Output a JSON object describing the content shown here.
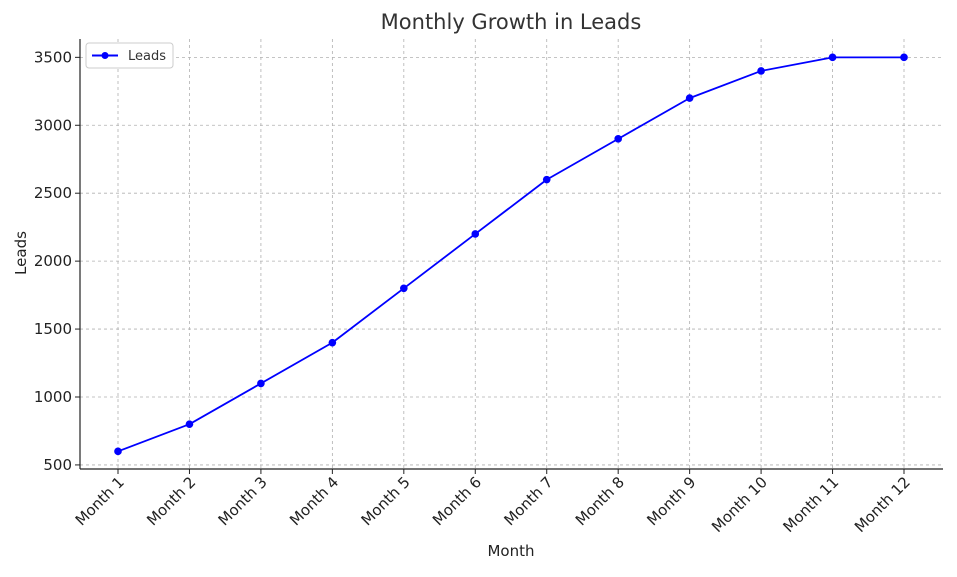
{
  "chart_data": {
    "type": "line",
    "title": "Monthly Growth in Leads",
    "xlabel": "Month",
    "ylabel": "Leads",
    "categories": [
      "Month 1",
      "Month 2",
      "Month 3",
      "Month 4",
      "Month 5",
      "Month 6",
      "Month 7",
      "Month 8",
      "Month 9",
      "Month 10",
      "Month 11",
      "Month 12"
    ],
    "series": [
      {
        "name": "Leads",
        "color": "#0000ff",
        "marker": "circle",
        "values": [
          600,
          800,
          1100,
          1400,
          1800,
          2200,
          2600,
          2900,
          3200,
          3400,
          3500,
          3500
        ]
      }
    ],
    "yticks": [
      500,
      1000,
      1500,
      2000,
      2500,
      3000,
      3500
    ],
    "ylim": [
      470,
      3635
    ],
    "grid": true,
    "legend": {
      "position": "top-left"
    }
  }
}
